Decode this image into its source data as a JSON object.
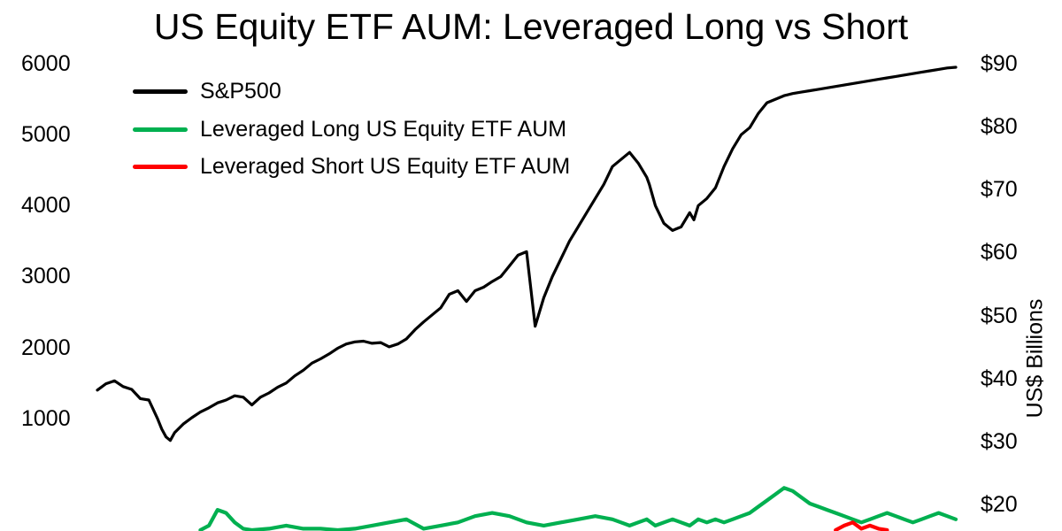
{
  "chart_data": {
    "type": "line",
    "title": "US Equity ETF AUM: Leveraged Long vs Short",
    "left_axis": {
      "ticks": [
        "6000",
        "5000",
        "4000",
        "3000",
        "2000",
        "1000"
      ],
      "range": [
        0,
        6000
      ]
    },
    "right_axis": {
      "label": "US$ Billions",
      "ticks": [
        "$90",
        "$80",
        "$70",
        "$60",
        "$50",
        "$40",
        "$30",
        "$20"
      ],
      "range": [
        13,
        90
      ]
    },
    "legend_position": "top-left",
    "grid": false,
    "series": [
      {
        "name": "S&P500",
        "axis": "left",
        "color": "#000000",
        "x": [
          0.0,
          1.0,
          2.0,
          3.0,
          4.0,
          5.0,
          6.0,
          7.0,
          7.5,
          8.0,
          8.5,
          9.0,
          10.0,
          11.0,
          12.0,
          13.0,
          14.0,
          15.0,
          16.0,
          17.0,
          18.0,
          19.0,
          20.0,
          21.0,
          22.0,
          23.0,
          24.0,
          25.0,
          26.0,
          27.0,
          28.0,
          29.0,
          30.0,
          31.0,
          32.0,
          33.0,
          34.0,
          35.0,
          36.0,
          37.0,
          38.0,
          39.0,
          40.0,
          41.0,
          42.0,
          43.0,
          44.0,
          45.0,
          46.0,
          47.0,
          48.0,
          49.0,
          50.0,
          51.0,
          52.0,
          53.0,
          54.0,
          55.0,
          56.0,
          57.0,
          58.0,
          59.0,
          60.0,
          61.0,
          62.0,
          63.0,
          64.0,
          64.3,
          65.0,
          66.0,
          67.0,
          68.0,
          69.0,
          69.5,
          70.0,
          71.0,
          72.0,
          73.0,
          74.0,
          75.0,
          76.0,
          77.0,
          78.0,
          79.0,
          80.0,
          81.0,
          82.0,
          83.0,
          84.0,
          85.0,
          86.0,
          87.0,
          88.0,
          89.0,
          90.0,
          91.0,
          92.0,
          93.0,
          94.0,
          95.0,
          96.0,
          97.0,
          98.0,
          99.0,
          100.0
        ],
        "y": [
          1400,
          1490,
          1530,
          1450,
          1410,
          1280,
          1260,
          1000,
          850,
          740,
          690,
          800,
          920,
          1010,
          1090,
          1150,
          1220,
          1260,
          1320,
          1300,
          1190,
          1300,
          1360,
          1440,
          1500,
          1600,
          1680,
          1780,
          1840,
          1910,
          1990,
          2050,
          2080,
          2090,
          2060,
          2070,
          2010,
          2050,
          2120,
          2250,
          2360,
          2460,
          2560,
          2750,
          2800,
          2650,
          2800,
          2850,
          2930,
          3000,
          3150,
          3300,
          3350,
          2300,
          2700,
          3000,
          3250,
          3500,
          3700,
          3900,
          4100,
          4300,
          4550,
          4650,
          4750,
          4600,
          4400,
          4300,
          4000,
          3750,
          3650,
          3700,
          3900,
          3800,
          4000,
          4100,
          4250,
          4550,
          4800,
          5000,
          5100,
          5300,
          5450,
          5500,
          5550,
          5580,
          5600,
          5620,
          5640,
          5660,
          5680,
          5700,
          5720,
          5740,
          5760,
          5780,
          5800,
          5820,
          5840,
          5860,
          5880,
          5900,
          5920,
          5940,
          5950
        ]
      },
      {
        "name": "Leveraged Long US Equity ETF AUM",
        "axis": "right",
        "color": "#00b050",
        "x": [
          12.0,
          13.0,
          14.0,
          15.0,
          16.0,
          17.0,
          18.0,
          20.0,
          22.0,
          24.0,
          26.0,
          28.0,
          30.0,
          32.0,
          34.0,
          36.0,
          38.0,
          40.0,
          42.0,
          44.0,
          46.0,
          48.0,
          50.0,
          52.0,
          54.0,
          56.0,
          58.0,
          60.0,
          61.0,
          62.0,
          63.0,
          64.0,
          65.0,
          66.0,
          67.0,
          68.0,
          69.0,
          70.0,
          71.0,
          72.0,
          73.0,
          74.0,
          75.0,
          76.0,
          77.0,
          78.0,
          79.0,
          80.0,
          81.0,
          82.0,
          83.0,
          84.0,
          85.0,
          86.0,
          87.0,
          88.0,
          89.0,
          90.0,
          91.0,
          92.0,
          93.0,
          94.0,
          95.0,
          96.0,
          97.0,
          98.0,
          99.0,
          100.0
        ],
        "y": [
          15.0,
          16.5,
          19.0,
          18.5,
          17.0,
          16.0,
          15.5,
          16.0,
          16.5,
          16.0,
          16.0,
          15.5,
          16.0,
          16.5,
          17.0,
          17.5,
          16.0,
          16.5,
          17.0,
          18.0,
          18.5,
          18.0,
          17.0,
          16.5,
          17.0,
          17.5,
          18.0,
          17.5,
          17.0,
          16.5,
          17.0,
          17.5,
          16.5,
          17.0,
          17.5,
          17.0,
          16.5,
          17.5,
          17.0,
          17.5,
          17.0,
          17.5,
          18.0,
          18.5,
          19.5,
          20.5,
          21.5,
          22.5,
          22.0,
          21.0,
          20.0,
          19.5,
          19.0,
          18.5,
          18.0,
          17.5,
          17.0,
          17.5,
          18.0,
          18.5,
          18.0,
          17.5,
          17.0,
          17.5,
          18.0,
          18.5,
          18.0,
          17.5
        ]
      },
      {
        "name": "Leveraged Short US Equity ETF AUM",
        "axis": "right",
        "color": "#ff0000",
        "x": [
          86.0,
          87.0,
          88.0,
          89.0,
          90.0,
          91.0,
          92.0
        ],
        "y": [
          15.0,
          16.5,
          17.0,
          16.0,
          16.5,
          16.0,
          15.5
        ]
      }
    ]
  }
}
